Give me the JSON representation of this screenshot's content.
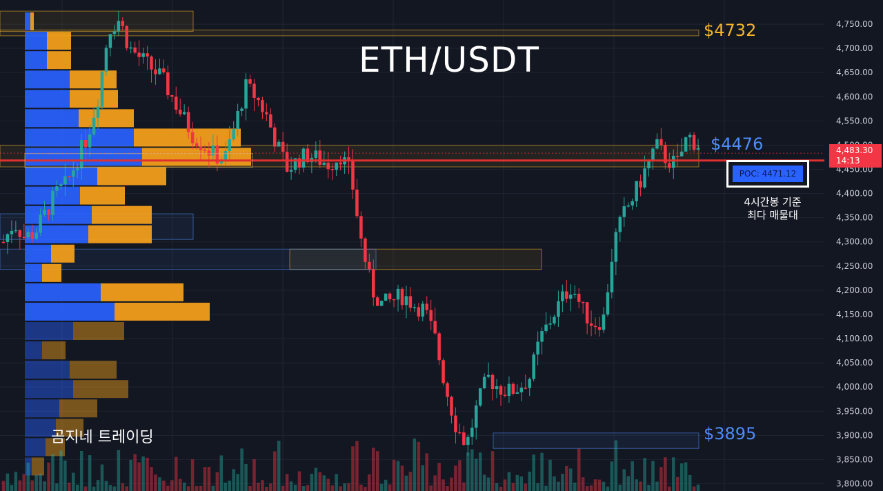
{
  "chart_data": {
    "type": "candlestick",
    "title": "ETH/USDT",
    "y_axis": {
      "min": 3785,
      "max": 4800,
      "ticks": [
        3800,
        3850,
        3900,
        3950,
        4000,
        4050,
        4100,
        4150,
        4200,
        4250,
        4300,
        4350,
        4400,
        4450,
        4500,
        4550,
        4600,
        4650,
        4700,
        4750
      ],
      "tick_labels": [
        "3,800.00",
        "3,850.00",
        "3,900.00",
        "3,950.00",
        "4,000.00",
        "4,050.00",
        "4,100.00",
        "4,150.00",
        "4,200.00",
        "4,250.00",
        "4,300.00",
        "4,350.00",
        "4,400.00",
        "4,450.00",
        "4,500.00",
        "4,550.00",
        "4,600.00",
        "4,650.00",
        "4,700.00",
        "4,750.00"
      ],
      "position": "right"
    },
    "price_path": [
      4300,
      4340,
      4310,
      4320,
      4360,
      4400,
      4420,
      4470,
      4520,
      4600,
      4740,
      4760,
      4700,
      4680,
      4660,
      4640,
      4600,
      4560,
      4520,
      4500,
      4480,
      4470,
      4540,
      4620,
      4600,
      4560,
      4500,
      4450,
      4470,
      4480,
      4470,
      4460,
      4480,
      4440,
      4300,
      4200,
      4170,
      4180,
      4190,
      4170,
      4160,
      4100,
      4000,
      3920,
      3880,
      3960,
      4020,
      4000,
      3990,
      4000,
      4020,
      4100,
      4140,
      4180,
      4210,
      4160,
      4130,
      4140,
      4300,
      4360,
      4400,
      4450,
      4500,
      4470,
      4460,
      4520,
      4500
    ],
    "current_price": {
      "value": 4483.3,
      "label": "4,483.30",
      "countdown": "14:13",
      "color": "#f23645"
    },
    "levels": [
      {
        "name": "resistance-4732",
        "value": 4732,
        "label": "$4732",
        "color": "#f5b729"
      },
      {
        "name": "resistance-4476",
        "value": 4476,
        "label": "$4476",
        "color": "#4d8cf7"
      },
      {
        "name": "support-3895",
        "value": 3895,
        "label": "$3895",
        "color": "#4d8cf7"
      }
    ],
    "poc": {
      "value": 4471.12,
      "label": "POC: 4471.12",
      "note_line1": "4시간봉 기준",
      "note_line2": "최다 매물대"
    },
    "volume_profile": {
      "rows": [
        {
          "price": 4755,
          "buy": 8,
          "sell": 5
        },
        {
          "price": 4715,
          "buy": 32,
          "sell": 35
        },
        {
          "price": 4675,
          "buy": 32,
          "sell": 35
        },
        {
          "price": 4635,
          "buy": 65,
          "sell": 68
        },
        {
          "price": 4595,
          "buy": 65,
          "sell": 70
        },
        {
          "price": 4555,
          "buy": 78,
          "sell": 80
        },
        {
          "price": 4515,
          "buy": 158,
          "sell": 155
        },
        {
          "price": 4475,
          "buy": 170,
          "sell": 158
        },
        {
          "price": 4435,
          "buy": 105,
          "sell": 100
        },
        {
          "price": 4395,
          "buy": 80,
          "sell": 65
        },
        {
          "price": 4355,
          "buy": 97,
          "sell": 87
        },
        {
          "price": 4315,
          "buy": 92,
          "sell": 92
        },
        {
          "price": 4275,
          "buy": 38,
          "sell": 34
        },
        {
          "price": 4235,
          "buy": 25,
          "sell": 28
        },
        {
          "price": 4195,
          "buy": 110,
          "sell": 120
        },
        {
          "price": 4155,
          "buy": 130,
          "sell": 138
        },
        {
          "price": 4115,
          "buy": 70,
          "sell": 74
        },
        {
          "price": 4075,
          "buy": 25,
          "sell": 34
        },
        {
          "price": 4035,
          "buy": 65,
          "sell": 68
        },
        {
          "price": 3995,
          "buy": 70,
          "sell": 80
        },
        {
          "price": 3955,
          "buy": 50,
          "sell": 55
        },
        {
          "price": 3915,
          "buy": 45,
          "sell": 40
        },
        {
          "price": 3875,
          "buy": 30,
          "sell": 28
        },
        {
          "price": 3835,
          "buy": 10,
          "sell": 18
        }
      ]
    },
    "zones": [
      {
        "top": 4777,
        "bottom": 4735,
        "color": "#f5b729",
        "span": "left"
      },
      {
        "top": 4738,
        "bottom": 4726,
        "color": "#f5b729",
        "span": "wide"
      },
      {
        "top": 4500,
        "bottom": 4455,
        "color": "#f5b729",
        "span": "wide"
      },
      {
        "top": 4358,
        "bottom": 4305,
        "color": "#4d8cf7",
        "span": "left"
      },
      {
        "top": 4285,
        "bottom": 4243,
        "color": "#f5b729",
        "span": "mid"
      },
      {
        "top": 4285,
        "bottom": 4243,
        "color": "#4d8cf7",
        "span": "left-mid"
      },
      {
        "top": 3905,
        "bottom": 3873,
        "color": "#4d8cf7",
        "span": "right"
      }
    ],
    "colors": {
      "up": "#26a69a",
      "down": "#f23645",
      "buy_profile": "#2962ff",
      "sell_profile": "#f7a21b",
      "background": "#131722",
      "grid": "#1f2433"
    }
  },
  "watermark": "곰지네 트레이딩"
}
